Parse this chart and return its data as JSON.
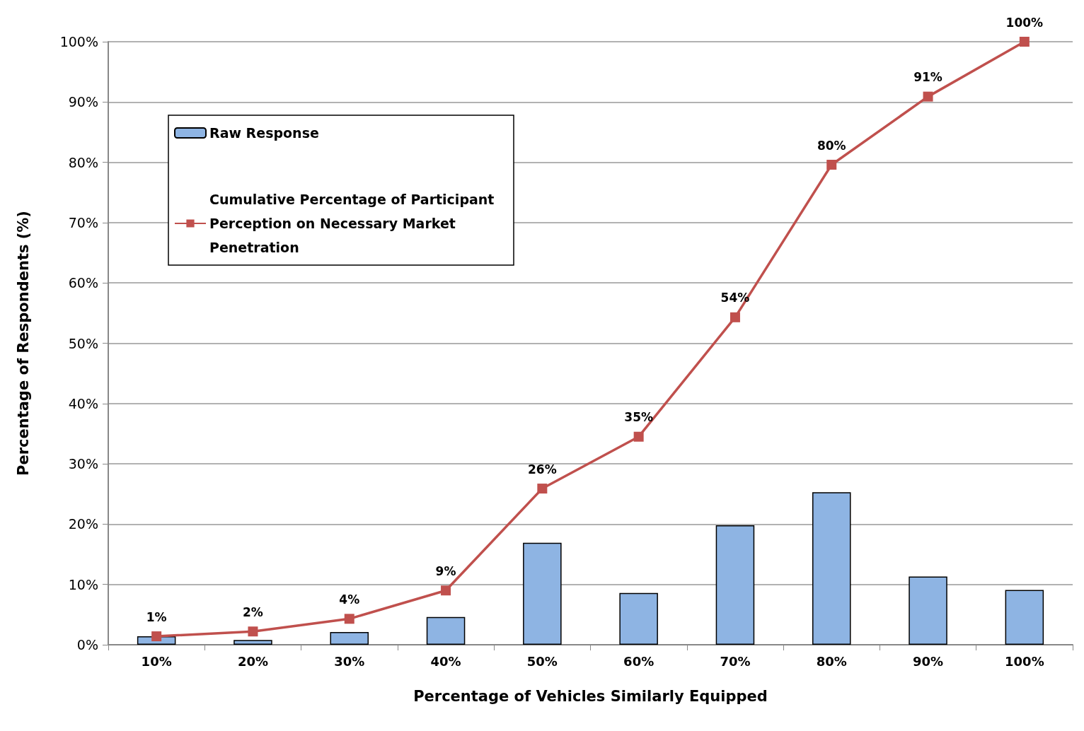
{
  "chart_data": {
    "type": "bar",
    "xlabel": "Percentage of Vehicles Similarly Equipped",
    "ylabel": "Percentage of Respondents (%)",
    "categories": [
      "10%",
      "20%",
      "30%",
      "40%",
      "50%",
      "60%",
      "70%",
      "80%",
      "90%",
      "100%"
    ],
    "series": [
      {
        "name": "Raw Response",
        "color": "#8eb4e3",
        "values": [
          1.4,
          0.8,
          2.1,
          4.6,
          16.9,
          8.6,
          19.8,
          25.3,
          11.3,
          9.1
        ]
      },
      {
        "name": "Cumulative Percentage of Participant Perception on Necessary Market Penetration",
        "type": "line",
        "color": "#c0504d",
        "marker": "square",
        "values": [
          1.4,
          2.2,
          4.3,
          9.0,
          25.9,
          34.5,
          54.3,
          79.6,
          90.9,
          100
        ],
        "value_labels": [
          "1%",
          "2%",
          "4%",
          "9%",
          "26%",
          "35%",
          "54%",
          "80%",
          "91%",
          "100%"
        ]
      }
    ],
    "ylim": [
      0,
      100
    ],
    "yticks": [
      {
        "value": 0,
        "label": "0%"
      },
      {
        "value": 10,
        "label": "10%"
      },
      {
        "value": 20,
        "label": "20%"
      },
      {
        "value": 30,
        "label": "30%"
      },
      {
        "value": 40,
        "label": "40%"
      },
      {
        "value": 50,
        "label": "50%"
      },
      {
        "value": 60,
        "label": "60%"
      },
      {
        "value": 70,
        "label": "70%"
      },
      {
        "value": 80,
        "label": "80%"
      },
      {
        "value": 90,
        "label": "90%"
      },
      {
        "value": 100,
        "label": "100%"
      }
    ],
    "grid": "y",
    "legend": "top left"
  }
}
